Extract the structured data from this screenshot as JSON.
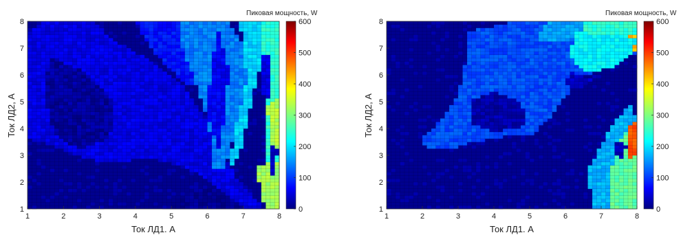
{
  "chart_data": [
    {
      "type": "heatmap",
      "xlabel": "Ток ЛД1. А",
      "ylabel": "Ток ЛД2, А",
      "xlim": [
        1,
        8
      ],
      "ylim": [
        1,
        8
      ],
      "x_ticks": [
        1,
        2,
        3,
        4,
        5,
        6,
        7,
        8
      ],
      "y_ticks": [
        1,
        2,
        3,
        4,
        5,
        6,
        7,
        8
      ],
      "colorbar": {
        "title": "Пиковая мощность, W",
        "range": [
          0,
          600
        ],
        "ticks": [
          0,
          100,
          200,
          300,
          400,
          500,
          600
        ],
        "colormap": "jet"
      },
      "grid": true,
      "resolution": 0.125,
      "regions": [
        {
          "shape": "poly",
          "level": 60,
          "pts": [
            [
              1,
              7.6
            ],
            [
              1.5,
              8
            ],
            [
              2.8,
              8
            ],
            [
              3.5,
              7.2
            ],
            [
              4.5,
              6.5
            ],
            [
              5.2,
              5.8
            ],
            [
              5.6,
              5.0
            ],
            [
              6.0,
              4.2
            ],
            [
              6.4,
              3.2
            ],
            [
              6.8,
              2.2
            ],
            [
              7.3,
              1.4
            ],
            [
              7.6,
              1
            ],
            [
              7.1,
              1
            ],
            [
              6.6,
              1.5
            ],
            [
              6.0,
              2.1
            ],
            [
              5.3,
              2.6
            ],
            [
              4.3,
              2.9
            ],
            [
              3.3,
              2.7
            ],
            [
              2.3,
              3.0
            ],
            [
              1.6,
              3.4
            ],
            [
              1,
              3.6
            ]
          ]
        },
        {
          "shape": "poly",
          "level": 18,
          "pts": [
            [
              1.6,
              6.7
            ],
            [
              2.6,
              6.1
            ],
            [
              3.4,
              5.0
            ],
            [
              3.3,
              3.7
            ],
            [
              2.5,
              3.2
            ],
            [
              1.8,
              3.7
            ],
            [
              1.5,
              5.0
            ]
          ]
        },
        {
          "shape": "poly",
          "level": 85,
          "pts": [
            [
              4.0,
              8
            ],
            [
              5.3,
              8
            ],
            [
              5.6,
              7.0
            ],
            [
              5.8,
              6.0
            ],
            [
              5.5,
              5.5
            ],
            [
              5.0,
              6.2
            ],
            [
              4.5,
              6.8
            ]
          ]
        },
        {
          "shape": "poly",
          "level": 150,
          "pts": [
            [
              5.2,
              8
            ],
            [
              6.6,
              8
            ],
            [
              7.2,
              6.6
            ],
            [
              7.0,
              5.2
            ],
            [
              6.7,
              3.6
            ],
            [
              6.5,
              2.6
            ],
            [
              6.2,
              2.4
            ],
            [
              6.1,
              3.6
            ],
            [
              5.9,
              4.8
            ],
            [
              5.6,
              6.0
            ],
            [
              5.3,
              7.0
            ]
          ]
        },
        {
          "shape": "poly",
          "level": 70,
          "pts": [
            [
              6.3,
              7.7
            ],
            [
              6.6,
              6.2
            ],
            [
              6.5,
              4.6
            ],
            [
              6.3,
              3.2
            ],
            [
              6.0,
              4.6
            ],
            [
              6.1,
              6.2
            ]
          ]
        },
        {
          "shape": "poly",
          "level": 200,
          "pts": [
            [
              6.9,
              8
            ],
            [
              7.6,
              8
            ],
            [
              7.5,
              6.5
            ],
            [
              7.2,
              4.8
            ],
            [
              6.9,
              3.0
            ],
            [
              6.6,
              2.4
            ],
            [
              6.8,
              4.2
            ],
            [
              7.1,
              5.8
            ]
          ]
        },
        {
          "shape": "poly",
          "level": 250,
          "pts": [
            [
              7.5,
              8
            ],
            [
              8,
              8
            ],
            [
              8,
              1
            ],
            [
              7.6,
              1
            ],
            [
              7.7,
              2.5
            ],
            [
              7.6,
              4.2
            ],
            [
              7.6,
              6.0
            ]
          ]
        },
        {
          "shape": "poly",
          "level": 60,
          "pts": [
            [
              7.55,
              6.8
            ],
            [
              7.8,
              6.6
            ],
            [
              7.75,
              5.0
            ],
            [
              7.5,
              5.3
            ]
          ]
        },
        {
          "shape": "poly",
          "level": 330,
          "pts": [
            [
              7.65,
              4.8
            ],
            [
              7.95,
              5.2
            ],
            [
              8,
              3.2
            ],
            [
              7.8,
              3.4
            ]
          ]
        },
        {
          "shape": "poly",
          "level": 320,
          "pts": [
            [
              7.35,
              2.6
            ],
            [
              8,
              2.8
            ],
            [
              8,
              1
            ],
            [
              7.6,
              1
            ]
          ]
        },
        {
          "shape": "poly",
          "level": 40,
          "pts": [
            [
              7.7,
              3.5
            ],
            [
              7.95,
              3.3
            ],
            [
              7.9,
              2.2
            ],
            [
              7.7,
              2.4
            ]
          ]
        },
        {
          "shape": "poly",
          "level": 10,
          "pts": [
            [
              4.8,
              1
            ],
            [
              5.3,
              1.5
            ],
            [
              6.1,
              1.8
            ],
            [
              6.6,
              1.4
            ],
            [
              6.9,
              1
            ],
            [
              6.0,
              1
            ]
          ]
        }
      ]
    },
    {
      "type": "heatmap",
      "xlabel": "Ток ЛД1. А",
      "ylabel": "Ток ЛД2, А",
      "xlim": [
        1,
        8
      ],
      "ylim": [
        1,
        8
      ],
      "x_ticks": [
        1,
        2,
        3,
        4,
        5,
        6,
        7,
        8
      ],
      "y_ticks": [
        1,
        2,
        3,
        4,
        5,
        6,
        7,
        8
      ],
      "colorbar": {
        "title": "Пиковая мощность, W",
        "range": [
          0,
          600
        ],
        "ticks": [
          0,
          100,
          200,
          300,
          400,
          500,
          600
        ],
        "colormap": "jet"
      },
      "grid": true,
      "resolution": 0.125,
      "regions": [
        {
          "shape": "poly",
          "level": 120,
          "pts": [
            [
              3.2,
              7.6
            ],
            [
              4.6,
              8
            ],
            [
              6.6,
              8
            ],
            [
              7.4,
              7.6
            ],
            [
              8,
              7.4
            ],
            [
              8,
              6.8
            ],
            [
              7.3,
              6.4
            ],
            [
              6.6,
              6.0
            ],
            [
              6.2,
              5.5
            ],
            [
              5.8,
              4.9
            ],
            [
              5.5,
              4.3
            ],
            [
              5.1,
              3.8
            ],
            [
              4.3,
              3.7
            ],
            [
              3.5,
              3.5
            ],
            [
              2.9,
              3.3
            ],
            [
              2.2,
              3.2
            ],
            [
              1.9,
              3.5
            ],
            [
              2.5,
              4.3
            ],
            [
              3.0,
              5.3
            ],
            [
              3.2,
              6.5
            ]
          ]
        },
        {
          "shape": "poly",
          "level": 25,
          "pts": [
            [
              3.4,
              5.1
            ],
            [
              4.0,
              5.4
            ],
            [
              4.6,
              5.1
            ],
            [
              4.9,
              4.6
            ],
            [
              4.8,
              4.0
            ],
            [
              4.0,
              3.9
            ],
            [
              3.4,
              4.2
            ]
          ]
        },
        {
          "shape": "poly",
          "level": 170,
          "pts": [
            [
              5.5,
              8
            ],
            [
              6.5,
              8
            ],
            [
              6.4,
              7.4
            ],
            [
              5.8,
              7.2
            ],
            [
              5.2,
              7.3
            ]
          ]
        },
        {
          "shape": "poly",
          "level": 250,
          "pts": [
            [
              6.5,
              8
            ],
            [
              8,
              8
            ],
            [
              8,
              7.5
            ],
            [
              7.2,
              7.2
            ],
            [
              6.5,
              7.6
            ]
          ]
        },
        {
          "shape": "poly",
          "level": 420,
          "pts": [
            [
              7.7,
              7.4
            ],
            [
              8,
              7.5
            ],
            [
              8,
              6.9
            ],
            [
              7.6,
              7.0
            ]
          ]
        },
        {
          "shape": "poly",
          "level": 220,
          "pts": [
            [
              6.3,
              7.6
            ],
            [
              8,
              7.4
            ],
            [
              7.8,
              6.7
            ],
            [
              7.3,
              6.3
            ],
            [
              6.8,
              6.1
            ],
            [
              6.4,
              6.2
            ],
            [
              6.1,
              6.8
            ]
          ]
        },
        {
          "shape": "poly",
          "level": 40,
          "pts": [
            [
              6.1,
              6.1
            ],
            [
              6.6,
              5.9
            ],
            [
              6.9,
              6.0
            ],
            [
              6.5,
              5.5
            ],
            [
              6.0,
              5.6
            ]
          ]
        },
        {
          "shape": "poly",
          "level": 180,
          "pts": [
            [
              6.8,
              1
            ],
            [
              8,
              1
            ],
            [
              8,
              4.4
            ],
            [
              7.8,
              4.9
            ],
            [
              7.4,
              4.3
            ],
            [
              7.0,
              3.4
            ],
            [
              6.6,
              2.4
            ]
          ]
        },
        {
          "shape": "poly",
          "level": 280,
          "pts": [
            [
              7.2,
              1
            ],
            [
              8,
              1
            ],
            [
              8,
              4.2
            ],
            [
              7.6,
              3.8
            ],
            [
              7.3,
              2.6
            ]
          ]
        },
        {
          "shape": "poly",
          "level": 480,
          "pts": [
            [
              7.75,
              2.8
            ],
            [
              8,
              3.0
            ],
            [
              8,
              4.3
            ],
            [
              7.8,
              4.1
            ]
          ]
        },
        {
          "shape": "poly",
          "level": 30,
          "pts": [
            [
              7.45,
              3.6
            ],
            [
              7.7,
              3.4
            ],
            [
              7.65,
              2.8
            ],
            [
              7.4,
              3.0
            ]
          ]
        }
      ]
    }
  ]
}
